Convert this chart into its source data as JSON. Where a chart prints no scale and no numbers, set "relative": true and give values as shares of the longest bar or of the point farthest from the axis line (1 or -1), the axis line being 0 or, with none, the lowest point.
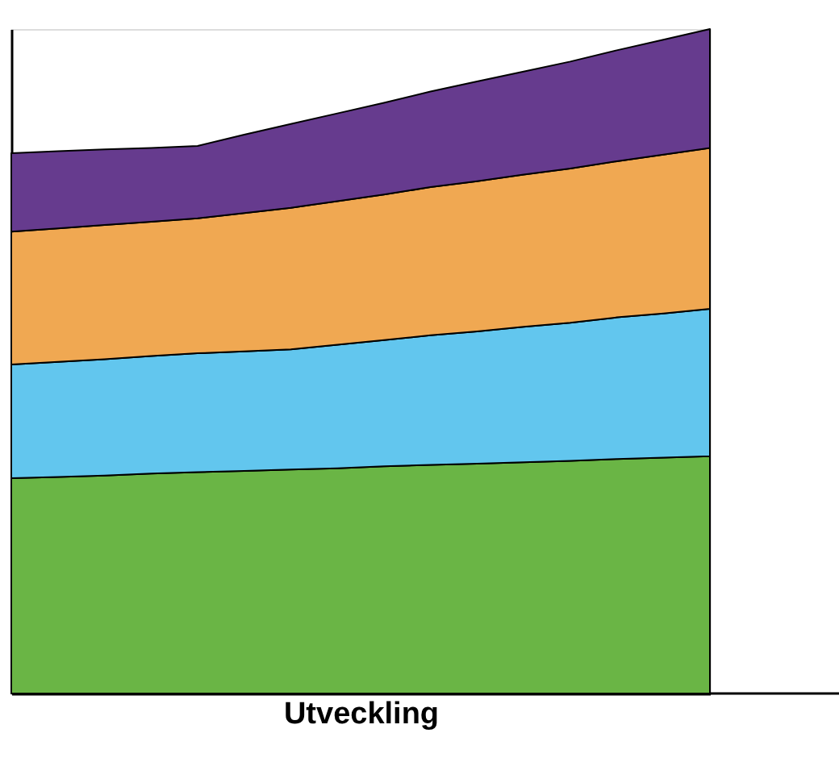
{
  "chart_data": {
    "type": "area",
    "stacked": true,
    "relative": true,
    "xlabel": "Utveckling",
    "categories": [
      null,
      null,
      null,
      null,
      null,
      null,
      null,
      null,
      null,
      null,
      null,
      null,
      null,
      null,
      null,
      null
    ],
    "grid": false,
    "series": [
      {
        "color": "#6ab545",
        "values": [
          0.324,
          0.326,
          0.328,
          0.331,
          0.333,
          0.335,
          0.337,
          0.339,
          0.342,
          0.344,
          0.346,
          0.348,
          0.35,
          0.353,
          0.355,
          0.357
        ]
      },
      {
        "color": "#62c6ee",
        "values": [
          0.171,
          0.173,
          0.175,
          0.177,
          0.179,
          0.18,
          0.181,
          0.186,
          0.19,
          0.195,
          0.199,
          0.204,
          0.208,
          0.213,
          0.217,
          0.222
        ]
      },
      {
        "color": "#f0a852",
        "values": [
          0.2,
          0.201,
          0.202,
          0.202,
          0.203,
          0.208,
          0.213,
          0.216,
          0.219,
          0.223,
          0.226,
          0.229,
          0.232,
          0.235,
          0.239,
          0.242
        ]
      },
      {
        "color": "#663b8e",
        "values": [
          0.118,
          0.116,
          0.114,
          0.111,
          0.109,
          0.118,
          0.126,
          0.132,
          0.138,
          0.144,
          0.15,
          0.155,
          0.161,
          0.167,
          0.173,
          0.179
        ]
      }
    ]
  }
}
